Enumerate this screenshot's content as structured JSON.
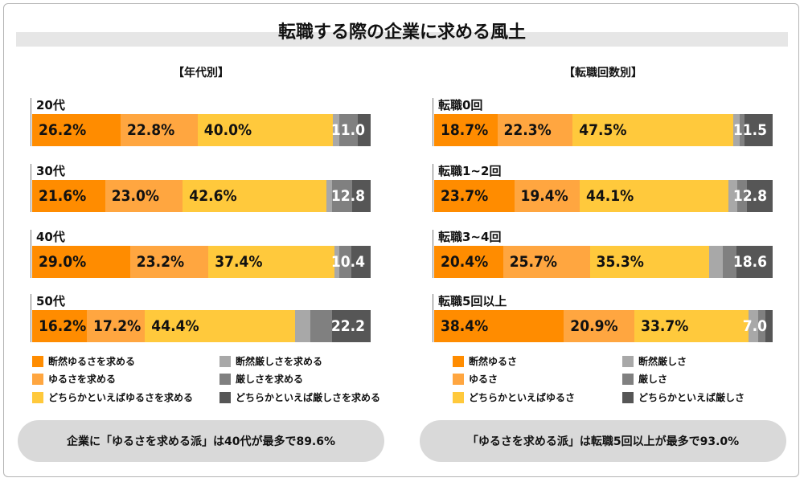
{
  "title": "転職する際の企業に求める風土",
  "colors": {
    "c1": "#ff8c00",
    "c2": "#ffa640",
    "c3": "#ffc93c",
    "c4": "#a8a8a8",
    "c5": "#808080",
    "c6": "#565656"
  },
  "legend_age": [
    "断然ゆるさを求める",
    "ゆるさを求める",
    "どちらかといえばゆるさを求める",
    "断然厳しさを求める",
    "厳しさを求める",
    "どちらかといえば厳しさを求める"
  ],
  "legend_job": [
    "断然ゆるさ",
    "ゆるさ",
    "どちらかといえばゆるさ",
    "断然厳しさ",
    "厳しさ",
    "どちらかといえば厳しさ"
  ],
  "chart_data": [
    {
      "type": "bar",
      "stacked": true,
      "orientation": "horizontal",
      "title": "【年代別】",
      "categories": [
        "20代",
        "30代",
        "40代",
        "50代"
      ],
      "series": [
        {
          "name": "断然ゆるさを求める",
          "values": [
            26.2,
            21.6,
            29.0,
            16.2
          ]
        },
        {
          "name": "ゆるさを求める",
          "values": [
            22.8,
            23.0,
            23.2,
            17.2
          ]
        },
        {
          "name": "どちらかといえばゆるさを求める",
          "values": [
            40.0,
            42.6,
            37.4,
            44.4
          ]
        },
        {
          "name": "断然厳しさを求める",
          "values": [
            2.0,
            1.6,
            1.4,
            4.5
          ]
        },
        {
          "name": "厳しさを求める",
          "values": [
            5.5,
            6.0,
            3.5,
            6.5
          ]
        },
        {
          "name": "どちらかといえば厳しさを求める",
          "values": [
            3.5,
            5.2,
            5.5,
            11.2
          ]
        }
      ],
      "labels": [
        [
          "26.2%",
          "22.8%",
          "40.0%",
          "",
          "",
          "11.0"
        ],
        [
          "21.6%",
          "23.0%",
          "42.6%",
          "",
          "",
          "12.8"
        ],
        [
          "29.0%",
          "23.2%",
          "37.4%",
          "",
          "",
          "10.4"
        ],
        [
          "16.2%",
          "17.2%",
          "44.4%",
          "",
          "",
          "22.2"
        ]
      ]
    },
    {
      "type": "bar",
      "stacked": true,
      "orientation": "horizontal",
      "title": "【転職回数別】",
      "categories": [
        "転職0回",
        "転職1~2回",
        "転職3~4回",
        "転職5回以上"
      ],
      "series": [
        {
          "name": "断然ゆるさ",
          "values": [
            18.7,
            23.7,
            20.4,
            38.4
          ]
        },
        {
          "name": "ゆるさ",
          "values": [
            22.3,
            19.4,
            25.7,
            20.9
          ]
        },
        {
          "name": "どちらかといえばゆるさ",
          "values": [
            47.5,
            44.1,
            35.3,
            33.7
          ]
        },
        {
          "name": "断然厳しさ",
          "values": [
            2.0,
            2.5,
            4.0,
            3.0
          ]
        },
        {
          "name": "厳しさ",
          "values": [
            1.5,
            3.0,
            4.0,
            2.0
          ]
        },
        {
          "name": "どちらかといえば厳しさ",
          "values": [
            8.0,
            7.3,
            10.6,
            2.0
          ]
        }
      ],
      "labels": [
        [
          "18.7%",
          "22.3%",
          "47.5%",
          "",
          "",
          "11.5"
        ],
        [
          "23.7%",
          "19.4%",
          "44.1%",
          "",
          "",
          "12.8"
        ],
        [
          "20.4%",
          "25.7%",
          "35.3%",
          "",
          "",
          "18.6"
        ],
        [
          "38.4%",
          "20.9%",
          "33.7%",
          "",
          "",
          "7.0"
        ]
      ]
    }
  ],
  "summary_age": "企業に「ゆるさを求める派」は40代が最多で89.6%",
  "summary_job": "「ゆるさを求める派」は転職5回以上が最多で93.0%"
}
